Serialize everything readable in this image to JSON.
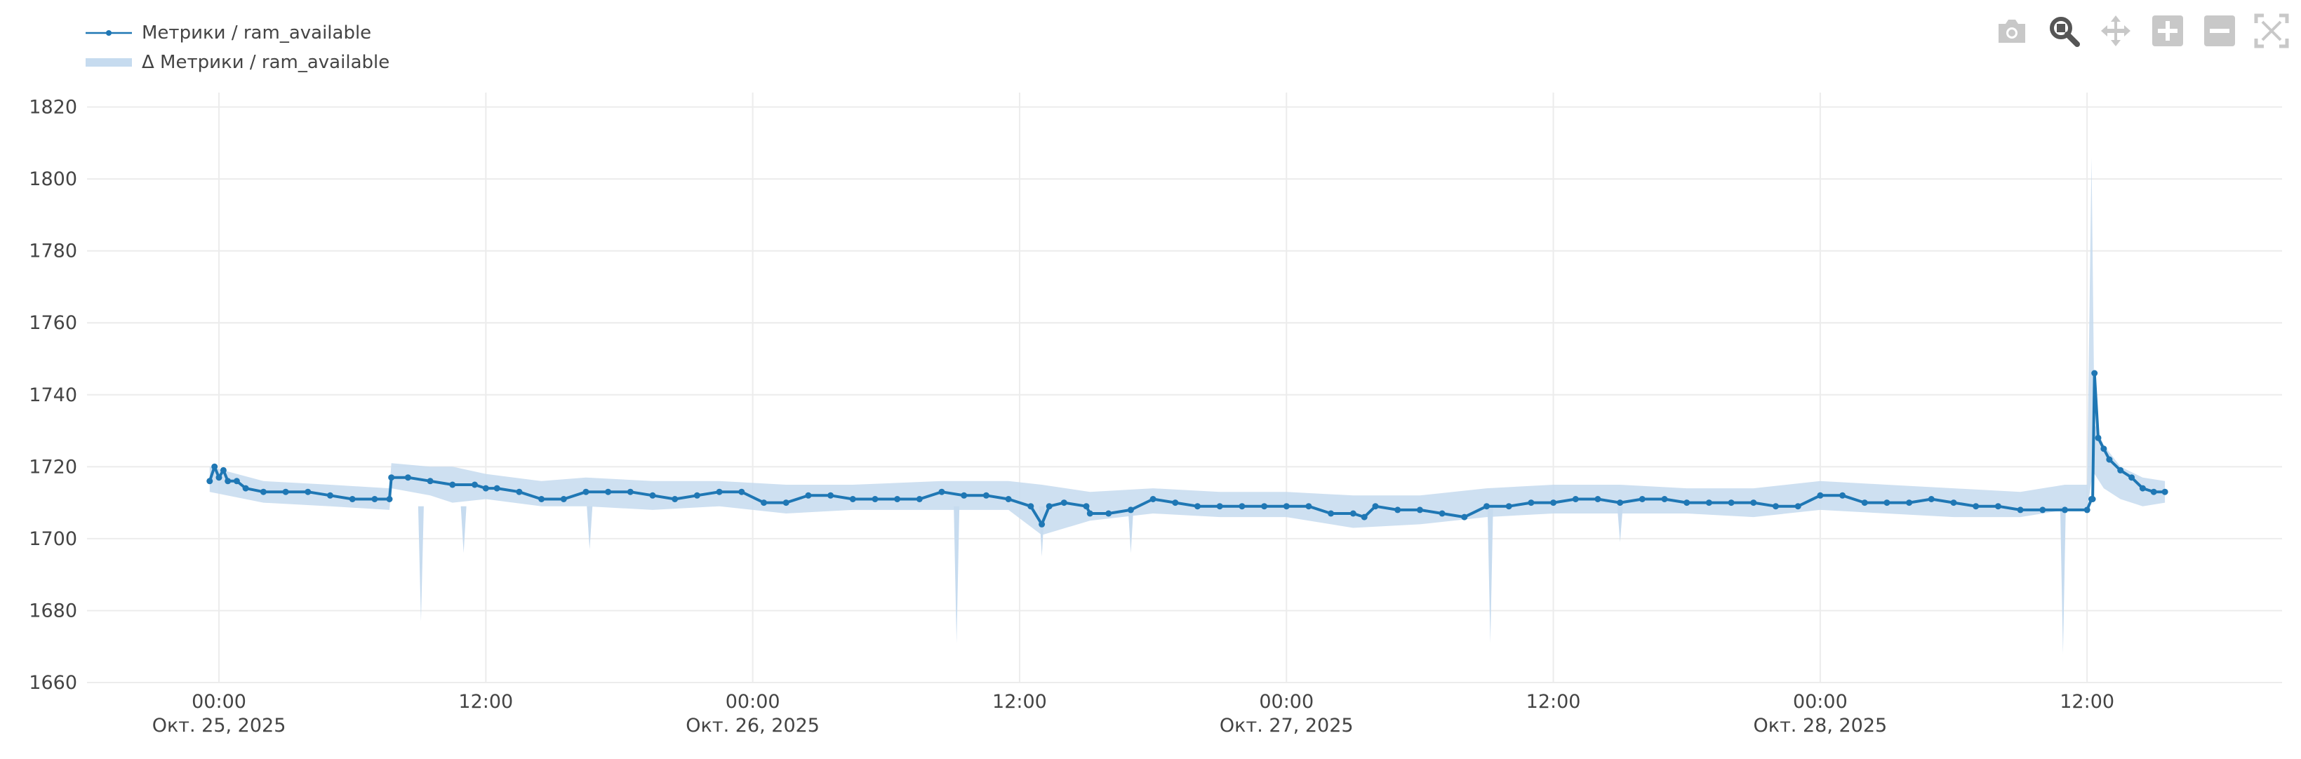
{
  "colors": {
    "line": "#1f77b4",
    "band": "#c6dbef",
    "grid": "#ececec",
    "tick_text": "#444444",
    "modebar_icon": "#c8c8c8",
    "modebar_active": "#555555"
  },
  "modebar": [
    {
      "name": "camera-icon",
      "active": false
    },
    {
      "name": "zoom-icon",
      "active": true
    },
    {
      "name": "pan-icon",
      "active": false
    },
    {
      "name": "zoom-in-icon",
      "active": false
    },
    {
      "name": "zoom-out-icon",
      "active": false
    },
    {
      "name": "autoscale-icon",
      "active": false
    }
  ],
  "chart_data": {
    "type": "line",
    "title": "",
    "xlabel": "",
    "ylabel": "",
    "xlim": [
      "2025-10-24 18:04",
      "2025-10-28 20:46"
    ],
    "ylim": [
      1660,
      1824
    ],
    "grid": true,
    "legend_position": "top-left",
    "legend": [
      "Метрики / ram_available",
      "Δ Метрики / ram_available"
    ],
    "y_ticks": [
      1660,
      1680,
      1700,
      1720,
      1740,
      1760,
      1780,
      1800,
      1820
    ],
    "x_ticks": [
      {
        "time": "2025-10-25 00:00",
        "label": "00:00",
        "sublabel": "Окт. 25, 2025"
      },
      {
        "time": "2025-10-25 12:00",
        "label": "12:00",
        "sublabel": ""
      },
      {
        "time": "2025-10-26 00:00",
        "label": "00:00",
        "sublabel": "Окт. 26, 2025"
      },
      {
        "time": "2025-10-26 12:00",
        "label": "12:00",
        "sublabel": ""
      },
      {
        "time": "2025-10-27 00:00",
        "label": "00:00",
        "sublabel": "Окт. 27, 2025"
      },
      {
        "time": "2025-10-27 12:00",
        "label": "12:00",
        "sublabel": ""
      },
      {
        "time": "2025-10-28 00:00",
        "label": "00:00",
        "sublabel": "Окт. 28, 2025"
      },
      {
        "time": "2025-10-28 12:00",
        "label": "12:00",
        "sublabel": ""
      }
    ],
    "series": [
      {
        "name": "Метрики / ram_available",
        "kind": "line-markers",
        "x": [
          "2025-10-24 23:35",
          "2025-10-24 23:48",
          "2025-10-25 00:00",
          "2025-10-25 00:12",
          "2025-10-25 00:24",
          "2025-10-25 00:48",
          "2025-10-25 01:12",
          "2025-10-25 02:00",
          "2025-10-25 03:00",
          "2025-10-25 04:00",
          "2025-10-25 05:00",
          "2025-10-25 06:00",
          "2025-10-25 07:00",
          "2025-10-25 07:40",
          "2025-10-25 07:45",
          "2025-10-25 08:30",
          "2025-10-25 09:30",
          "2025-10-25 10:30",
          "2025-10-25 11:30",
          "2025-10-25 12:00",
          "2025-10-25 12:30",
          "2025-10-25 13:30",
          "2025-10-25 14:30",
          "2025-10-25 15:30",
          "2025-10-25 16:30",
          "2025-10-25 17:30",
          "2025-10-25 18:30",
          "2025-10-25 19:30",
          "2025-10-25 20:30",
          "2025-10-25 21:30",
          "2025-10-25 22:30",
          "2025-10-25 23:30",
          "2025-10-26 00:30",
          "2025-10-26 01:30",
          "2025-10-26 02:30",
          "2025-10-26 03:30",
          "2025-10-26 04:30",
          "2025-10-26 05:30",
          "2025-10-26 06:30",
          "2025-10-26 07:30",
          "2025-10-26 08:30",
          "2025-10-26 09:30",
          "2025-10-26 10:30",
          "2025-10-26 11:30",
          "2025-10-26 12:30",
          "2025-10-26 13:00",
          "2025-10-26 13:20",
          "2025-10-26 14:00",
          "2025-10-26 15:00",
          "2025-10-26 15:10",
          "2025-10-26 16:00",
          "2025-10-26 17:00",
          "2025-10-26 18:00",
          "2025-10-26 19:00",
          "2025-10-26 20:00",
          "2025-10-26 21:00",
          "2025-10-26 22:00",
          "2025-10-26 23:00",
          "2025-10-27 00:00",
          "2025-10-27 01:00",
          "2025-10-27 02:00",
          "2025-10-27 03:00",
          "2025-10-27 03:30",
          "2025-10-27 04:00",
          "2025-10-27 05:00",
          "2025-10-27 06:00",
          "2025-10-27 07:00",
          "2025-10-27 08:00",
          "2025-10-27 09:00",
          "2025-10-27 10:00",
          "2025-10-27 11:00",
          "2025-10-27 12:00",
          "2025-10-27 13:00",
          "2025-10-27 14:00",
          "2025-10-27 15:00",
          "2025-10-27 16:00",
          "2025-10-27 17:00",
          "2025-10-27 18:00",
          "2025-10-27 19:00",
          "2025-10-27 20:00",
          "2025-10-27 21:00",
          "2025-10-27 22:00",
          "2025-10-27 23:00",
          "2025-10-28 00:00",
          "2025-10-28 01:00",
          "2025-10-28 02:00",
          "2025-10-28 03:00",
          "2025-10-28 04:00",
          "2025-10-28 05:00",
          "2025-10-28 06:00",
          "2025-10-28 07:00",
          "2025-10-28 08:00",
          "2025-10-28 09:00",
          "2025-10-28 10:00",
          "2025-10-28 11:00",
          "2025-10-28 12:00",
          "2025-10-28 12:12",
          "2025-10-28 12:15",
          "2025-10-28 12:20",
          "2025-10-28 12:30",
          "2025-10-28 12:45",
          "2025-10-28 13:00",
          "2025-10-28 13:30",
          "2025-10-28 14:00",
          "2025-10-28 14:30",
          "2025-10-28 15:00",
          "2025-10-28 15:30"
        ],
        "y": [
          1716,
          1720,
          1717,
          1719,
          1716,
          1716,
          1714,
          1713,
          1713,
          1713,
          1712,
          1711,
          1711,
          1711,
          1717,
          1717,
          1716,
          1715,
          1715,
          1714,
          1714,
          1713,
          1711,
          1711,
          1713,
          1713,
          1713,
          1712,
          1711,
          1712,
          1713,
          1713,
          1710,
          1710,
          1712,
          1712,
          1711,
          1711,
          1711,
          1711,
          1713,
          1712,
          1712,
          1711,
          1709,
          1704,
          1709,
          1710,
          1709,
          1707,
          1707,
          1708,
          1711,
          1710,
          1709,
          1709,
          1709,
          1709,
          1709,
          1709,
          1707,
          1707,
          1706,
          1709,
          1708,
          1708,
          1707,
          1706,
          1709,
          1709,
          1710,
          1710,
          1711,
          1711,
          1710,
          1711,
          1711,
          1710,
          1710,
          1710,
          1710,
          1709,
          1709,
          1712,
          1712,
          1710,
          1710,
          1710,
          1711,
          1710,
          1709,
          1709,
          1708,
          1708,
          1708,
          1708,
          1711,
          1711,
          1746,
          1728,
          1725,
          1722,
          1719,
          1717,
          1714,
          1713,
          1713
        ]
      },
      {
        "name": "Δ Метрики / ram_available",
        "kind": "band",
        "x": [
          "2025-10-24 23:35",
          "2025-10-25 02:00",
          "2025-10-25 05:00",
          "2025-10-25 07:40",
          "2025-10-25 07:45",
          "2025-10-25 09:30",
          "2025-10-25 10:30",
          "2025-10-25 12:00",
          "2025-10-25 14:30",
          "2025-10-25 16:30",
          "2025-10-25 19:30",
          "2025-10-25 22:30",
          "2025-10-26 01:30",
          "2025-10-26 04:30",
          "2025-10-26 08:30",
          "2025-10-26 11:30",
          "2025-10-26 13:00",
          "2025-10-26 15:10",
          "2025-10-26 18:00",
          "2025-10-26 21:00",
          "2025-10-27 00:00",
          "2025-10-27 03:00",
          "2025-10-27 06:00",
          "2025-10-27 09:00",
          "2025-10-27 12:00",
          "2025-10-27 15:00",
          "2025-10-27 18:00",
          "2025-10-27 21:00",
          "2025-10-28 00:00",
          "2025-10-28 03:00",
          "2025-10-28 06:00",
          "2025-10-28 09:00",
          "2025-10-28 11:00",
          "2025-10-28 12:00",
          "2025-10-28 12:12",
          "2025-10-28 12:20",
          "2025-10-28 12:45",
          "2025-10-28 13:30",
          "2025-10-28 14:30",
          "2025-10-28 15:30"
        ],
        "low": [
          1713,
          1710,
          1709,
          1708,
          1714,
          1712,
          1710,
          1711,
          1709,
          1709,
          1708,
          1709,
          1707,
          1708,
          1708,
          1708,
          1701,
          1705,
          1707,
          1706,
          1706,
          1703,
          1704,
          1706,
          1707,
          1707,
          1707,
          1706,
          1708,
          1707,
          1706,
          1706,
          1708,
          1708,
          1716,
          1718,
          1714,
          1711,
          1709,
          1710
        ],
        "high": [
          1720,
          1716,
          1715,
          1714,
          1721,
          1720,
          1720,
          1718,
          1716,
          1717,
          1716,
          1716,
          1715,
          1715,
          1716,
          1716,
          1715,
          1713,
          1714,
          1713,
          1713,
          1712,
          1712,
          1714,
          1715,
          1715,
          1714,
          1714,
          1716,
          1715,
          1714,
          1713,
          1715,
          1715,
          1806,
          1732,
          1726,
          1720,
          1717,
          1716
        ]
      }
    ],
    "spikes": [
      {
        "time": "2025-10-25 09:05",
        "value": 1677
      },
      {
        "time": "2025-10-25 11:00",
        "value": 1696
      },
      {
        "time": "2025-10-25 16:40",
        "value": 1697
      },
      {
        "time": "2025-10-26 09:10",
        "value": 1671
      },
      {
        "time": "2025-10-26 13:00",
        "value": 1695
      },
      {
        "time": "2025-10-26 17:00",
        "value": 1696
      },
      {
        "time": "2025-10-27 09:10",
        "value": 1671
      },
      {
        "time": "2025-10-27 15:00",
        "value": 1699
      },
      {
        "time": "2025-10-28 10:55",
        "value": 1668
      }
    ]
  }
}
